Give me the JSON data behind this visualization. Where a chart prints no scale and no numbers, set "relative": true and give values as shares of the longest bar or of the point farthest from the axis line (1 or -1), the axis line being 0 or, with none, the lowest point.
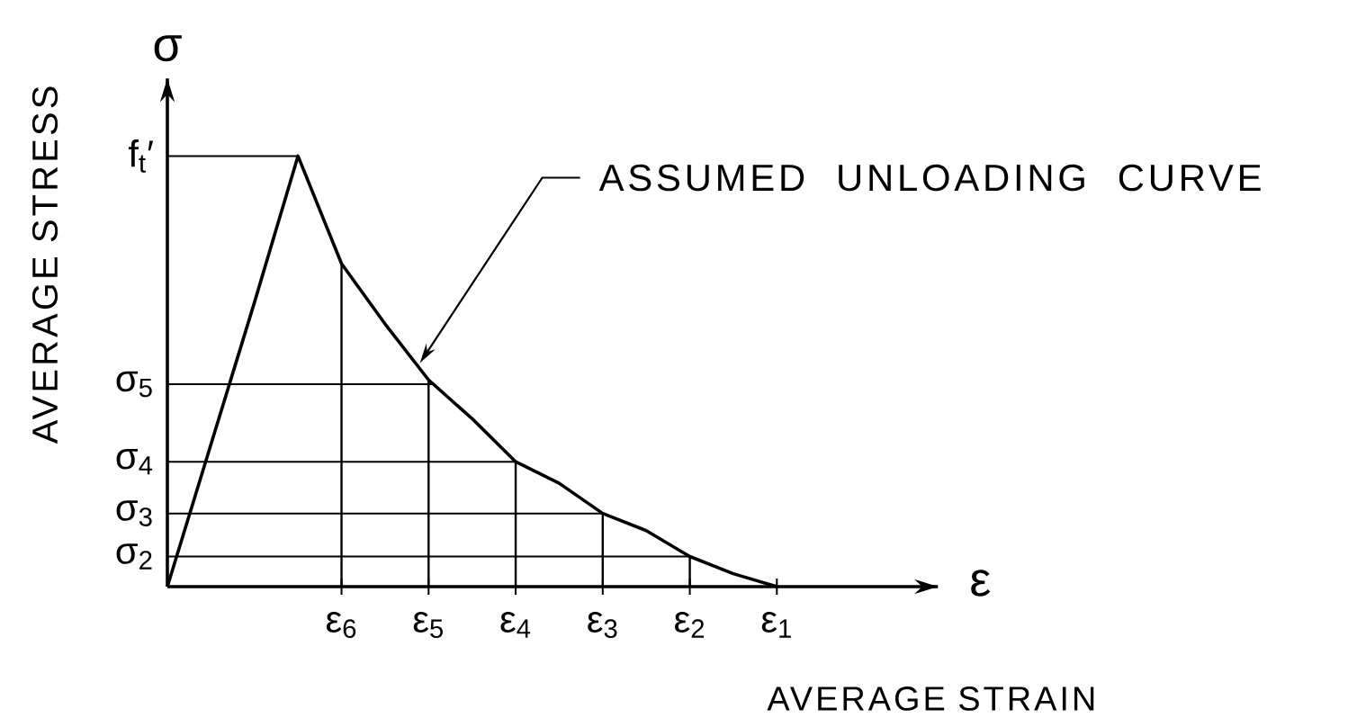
{
  "chart_data": {
    "type": "line",
    "relative": true,
    "xlabel": "AVERAGE STRAIN",
    "ylabel": "AVERAGE STRESS",
    "categories": [
      null,
      null,
      null,
      null,
      "ε$_{6}$",
      null,
      "ε$_{5}$",
      null,
      "ε$_{4}$",
      null,
      "ε$_{3}$",
      null,
      "ε$_{2}$",
      null,
      "ε$_{1}$"
    ],
    "series": [
      {
        "color": "#000000",
        "values": [
          0,
          0.33,
          0.66,
          1,
          0.75,
          0.61,
          0.48,
          0.39,
          0.29,
          0.24,
          0.17,
          0.13,
          0.07,
          0.03,
          0
        ]
      },
      {
        "type": "bar",
        "color": "#000000",
        "values": [
          null,
          null,
          null,
          null,
          0.75,
          null,
          0.48,
          null,
          0.29,
          null,
          0.17,
          null,
          0.07,
          null,
          null
        ]
      }
    ],
    "ref_lines": [
      {
        "axis": "y",
        "value": 0.07,
        "label": "σ$_{2}$"
      },
      {
        "axis": "y",
        "value": 0.17,
        "label": "σ$_{3}$"
      },
      {
        "axis": "y",
        "value": 0.29,
        "label": "σ$_{4}$"
      },
      {
        "axis": "y",
        "value": 0.47,
        "label": "σ$_{5}$"
      },
      {
        "axis": "y",
        "value": 1,
        "label": "f$_{t}$′"
      }
    ],
    "annotations": [
      "σ",
      "ε",
      "ASSUMED UNLOADING CURVE"
    ]
  }
}
